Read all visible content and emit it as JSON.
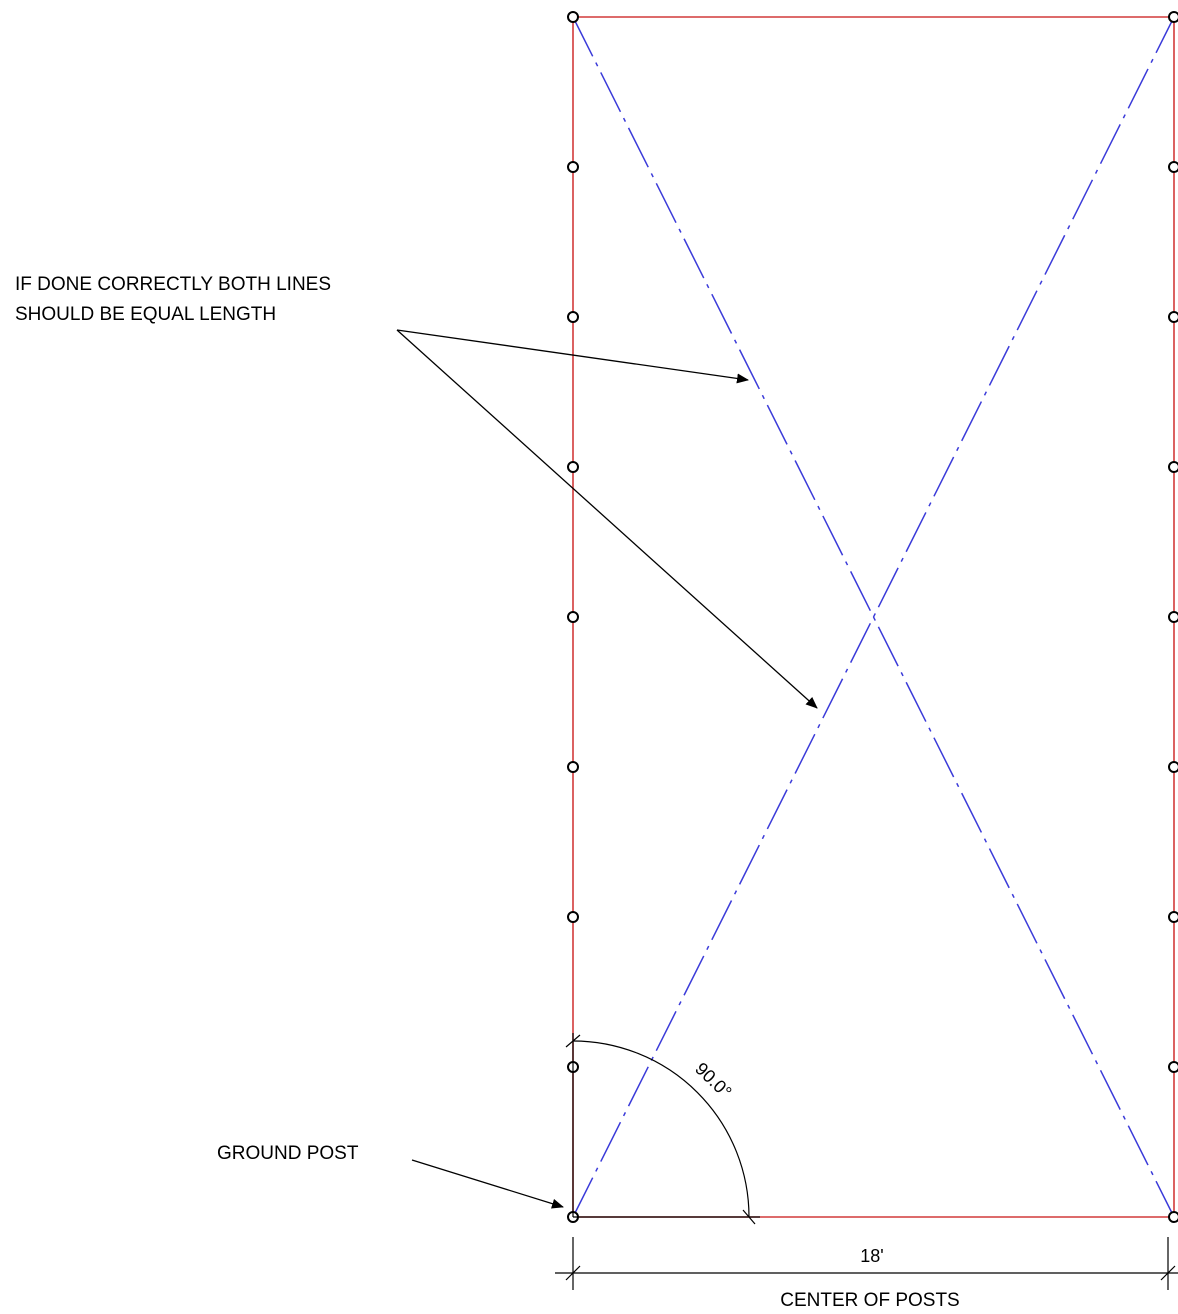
{
  "annotations": {
    "equal_length_line1": "IF DONE CORRECTLY BOTH LINES",
    "equal_length_line2": "SHOULD BE EQUAL LENGTH",
    "ground_post": "GROUND POST",
    "center_of_posts": "CENTER OF POSTS"
  },
  "dimensions": {
    "width": "18'",
    "angle": "90.0°"
  },
  "colors": {
    "perimeter": "#d23a3a",
    "diagonal": "#3b3bd9",
    "ink": "#000000"
  },
  "posts": {
    "per_side": 9
  }
}
